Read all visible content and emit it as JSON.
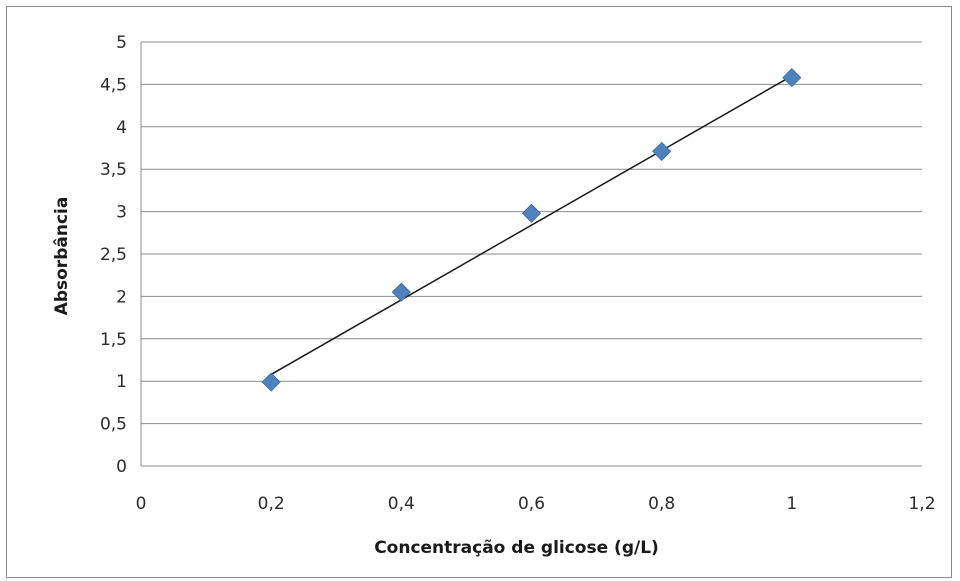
{
  "chart_data": {
    "type": "scatter",
    "title": "",
    "xlabel": "Concentração de glicose (g/L)",
    "ylabel": "Absorbância",
    "xlim": [
      0,
      1.2
    ],
    "ylim": [
      0,
      5
    ],
    "x_ticks": [
      "0",
      "0,2",
      "0,4",
      "0,6",
      "0,8",
      "1",
      "1,2"
    ],
    "y_ticks": [
      "0",
      "0,5",
      "1",
      "1,5",
      "2",
      "2,5",
      "3",
      "3,5",
      "4",
      "4,5",
      "5"
    ],
    "x_tick_values": [
      0,
      0.2,
      0.4,
      0.6,
      0.8,
      1.0,
      1.2
    ],
    "y_tick_values": [
      0,
      0.5,
      1,
      1.5,
      2,
      2.5,
      3,
      3.5,
      4,
      4.5,
      5
    ],
    "grid": "horizontal",
    "legend": "none",
    "series": [
      {
        "x": [
          0.2,
          0.4,
          0.6,
          0.8,
          1.0
        ],
        "y": [
          0.99,
          2.05,
          2.98,
          3.71,
          4.58
        ],
        "marker": "diamond",
        "color": "#4f81bd"
      }
    ],
    "trendline": {
      "type": "linear",
      "x": [
        0.2,
        1.0
      ],
      "y": [
        1.08,
        4.6
      ],
      "color": "#1a1a1a"
    }
  }
}
